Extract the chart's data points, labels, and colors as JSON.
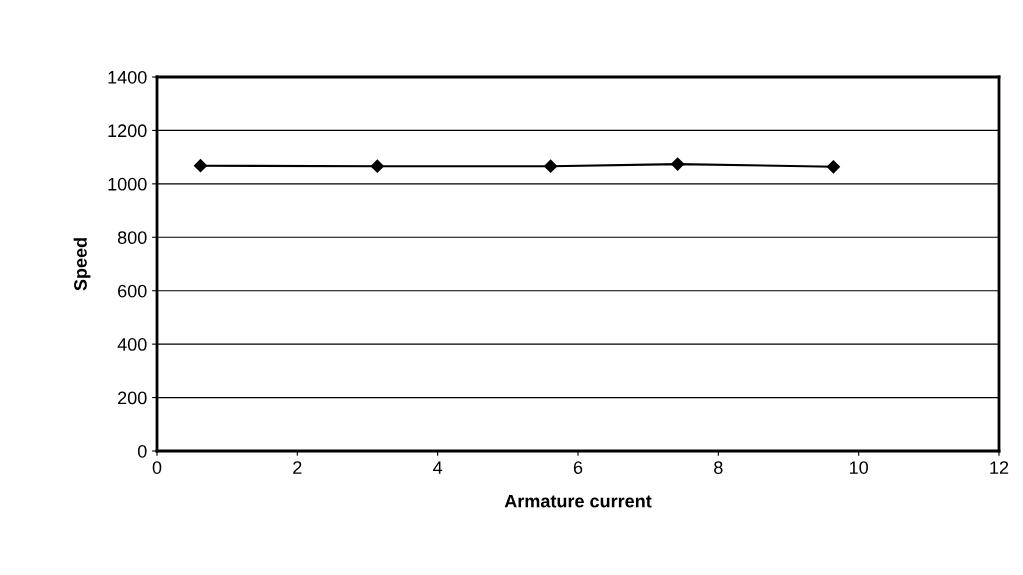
{
  "chart_data": {
    "type": "line",
    "xlabel": "Armature current",
    "ylabel": "Speed",
    "x": [
      0.62,
      3.14,
      5.61,
      7.42,
      9.64
    ],
    "series": [
      {
        "color": "#000000",
        "values": [
          1068,
          1066,
          1066,
          1074,
          1064
        ]
      }
    ],
    "xlim": [
      0,
      12
    ],
    "xticks": [
      0,
      2,
      4,
      6,
      8,
      10,
      12
    ],
    "ylim": [
      0,
      1400
    ],
    "yticks": [
      0,
      200,
      400,
      600,
      800,
      1000,
      1200,
      1400
    ],
    "grid": "y",
    "marker": "diamond",
    "line_style": "solid",
    "legend": false
  }
}
